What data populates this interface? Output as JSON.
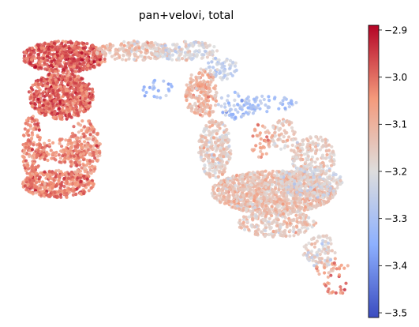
{
  "chart_data": {
    "type": "scatter",
    "title": "pan+velovi, total",
    "xlabel": "",
    "ylabel": "",
    "axes_visible": false,
    "grid": false,
    "x_range": [
      0,
      1
    ],
    "y_range": [
      0,
      1
    ],
    "colorbar": {
      "colormap": "coolwarm",
      "range": [
        -3.51,
        -2.89
      ],
      "ticks": [
        -2.9,
        -3.0,
        -3.1,
        -3.2,
        -3.3,
        -3.4,
        -3.5
      ],
      "tick_labels": [
        "−2.9",
        "−3.0",
        "−3.1",
        "−3.2",
        "−3.3",
        "−3.4",
        "−3.5"
      ],
      "position": "right"
    },
    "embedding_regions": [
      {
        "x": [
          0.0,
          0.26
        ],
        "y": [
          0.84,
          1.0
        ],
        "value": -2.98,
        "density": 2.2
      },
      {
        "x": [
          0.02,
          0.22
        ],
        "y": [
          0.6,
          0.84
        ],
        "value": -2.99,
        "density": 2.2
      },
      {
        "x": [
          0.0,
          0.06
        ],
        "y": [
          0.3,
          0.62
        ],
        "value": -3.03,
        "density": 1.3
      },
      {
        "x": [
          0.14,
          0.24
        ],
        "y": [
          0.3,
          0.6
        ],
        "value": -3.04,
        "density": 1.2
      },
      {
        "x": [
          0.04,
          0.2
        ],
        "y": [
          0.38,
          0.5
        ],
        "value": -3.02,
        "density": 1.0
      },
      {
        "x": [
          0.0,
          0.22
        ],
        "y": [
          0.2,
          0.34
        ],
        "value": -3.01,
        "density": 2.0
      },
      {
        "x": [
          0.22,
          0.46
        ],
        "y": [
          0.9,
          1.0
        ],
        "value": -3.14,
        "density": 1.4
      },
      {
        "x": [
          0.4,
          0.6
        ],
        "y": [
          0.9,
          1.0
        ],
        "value": -3.2,
        "density": 1.2
      },
      {
        "x": [
          0.56,
          0.66
        ],
        "y": [
          0.8,
          0.92
        ],
        "value": -3.25,
        "density": 0.9
      },
      {
        "x": [
          0.36,
          0.46
        ],
        "y": [
          0.7,
          0.82
        ],
        "value": -3.32,
        "density": 0.3
      },
      {
        "x": [
          0.5,
          0.6
        ],
        "y": [
          0.6,
          0.86
        ],
        "value": -3.1,
        "density": 1.3
      },
      {
        "x": [
          0.54,
          0.64
        ],
        "y": [
          0.3,
          0.6
        ],
        "value": -3.16,
        "density": 1.6
      },
      {
        "x": [
          0.6,
          0.72
        ],
        "y": [
          0.6,
          0.74
        ],
        "value": -3.31,
        "density": 0.6
      },
      {
        "x": [
          0.66,
          0.84
        ],
        "y": [
          0.64,
          0.72
        ],
        "value": -3.29,
        "density": 0.6
      },
      {
        "x": [
          0.7,
          0.76
        ],
        "y": [
          0.4,
          0.58
        ],
        "value": -3.06,
        "density": 0.6
      },
      {
        "x": [
          0.76,
          0.84
        ],
        "y": [
          0.44,
          0.6
        ],
        "value": -3.14,
        "density": 0.8
      },
      {
        "x": [
          0.82,
          0.96
        ],
        "y": [
          0.3,
          0.52
        ],
        "value": -3.15,
        "density": 1.0
      },
      {
        "x": [
          0.58,
          0.96
        ],
        "y": [
          0.12,
          0.34
        ],
        "value": -3.13,
        "density": 2.4
      },
      {
        "x": [
          0.66,
          0.9
        ],
        "y": [
          0.0,
          0.14
        ],
        "value": -3.15,
        "density": 1.2
      },
      {
        "x": [
          0.78,
          0.98
        ],
        "y": [
          0.2,
          0.36
        ],
        "value": -3.2,
        "density": 0.9
      },
      {
        "x": [
          0.86,
          0.96
        ],
        "y": [
          -0.16,
          0.02
        ],
        "value": -3.18,
        "density": 0.9
      },
      {
        "x": [
          0.9,
          1.0
        ],
        "y": [
          -0.22,
          -0.1
        ],
        "value": -3.07,
        "density": 0.4
      },
      {
        "x": [
          0.92,
          1.0
        ],
        "y": [
          -0.3,
          -0.22
        ],
        "value": -3.04,
        "density": 0.4
      }
    ]
  }
}
